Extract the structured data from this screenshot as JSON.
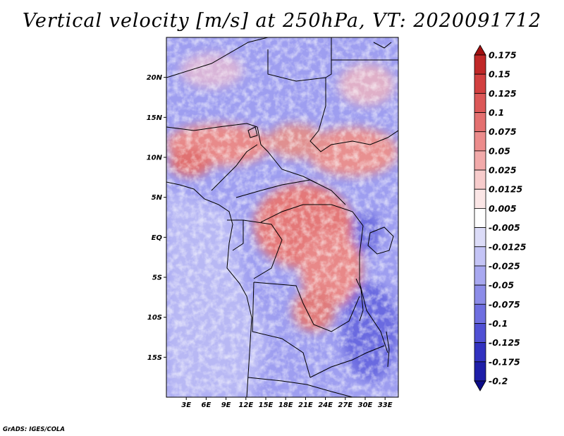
{
  "title": "Vertical velocity [m/s] at 250hPa, VT: 2020091712",
  "credit": "GrADS: IGES/COLA",
  "map": {
    "lon_range_deg": [
      0.0,
      35.0
    ],
    "lat_range_deg": [
      -20.0,
      25.0
    ],
    "lat_ticks": [
      {
        "lat": 20,
        "label": "20N"
      },
      {
        "lat": 15,
        "label": "15N"
      },
      {
        "lat": 10,
        "label": "10N"
      },
      {
        "lat": 5,
        "label": "5N"
      },
      {
        "lat": 0,
        "label": "EQ"
      },
      {
        "lat": -5,
        "label": "5S"
      },
      {
        "lat": -10,
        "label": "10S"
      },
      {
        "lat": -15,
        "label": "15S"
      }
    ],
    "lon_ticks": [
      {
        "lon": 3,
        "label": "3E"
      },
      {
        "lon": 6,
        "label": "6E"
      },
      {
        "lon": 9,
        "label": "9E"
      },
      {
        "lon": 12,
        "label": "12E"
      },
      {
        "lon": 15,
        "label": "15E"
      },
      {
        "lon": 18,
        "label": "18E"
      },
      {
        "lon": 21,
        "label": "21E"
      },
      {
        "lon": 24,
        "label": "24E"
      },
      {
        "lon": 27,
        "label": "27E"
      },
      {
        "lon": 30,
        "label": "30E"
      },
      {
        "lon": 33,
        "label": "33E"
      }
    ],
    "field": "vertical velocity (w) at 250 hPa",
    "units": "m/s"
  },
  "colorbar": {
    "labels": [
      "0.175",
      "0.15",
      "0.125",
      "0.1",
      "0.075",
      "0.05",
      "0.025",
      "0.0125",
      "0.005",
      "-0.005",
      "-0.0125",
      "-0.025",
      "-0.05",
      "-0.075",
      "-0.1",
      "-0.125",
      "-0.175",
      "-0.2"
    ],
    "colors": [
      "#a01010",
      "#c02828",
      "#d24040",
      "#dc5858",
      "#e47070",
      "#ec8c8c",
      "#f2aaaa",
      "#f7cccc",
      "#fbe6e6",
      "#ffffff",
      "#dcdcf8",
      "#c4c4f6",
      "#a8a8f0",
      "#8c8ce8",
      "#6e6ee0",
      "#5050d4",
      "#3232c0",
      "#1e1ea8",
      "#0c0c88"
    ]
  }
}
